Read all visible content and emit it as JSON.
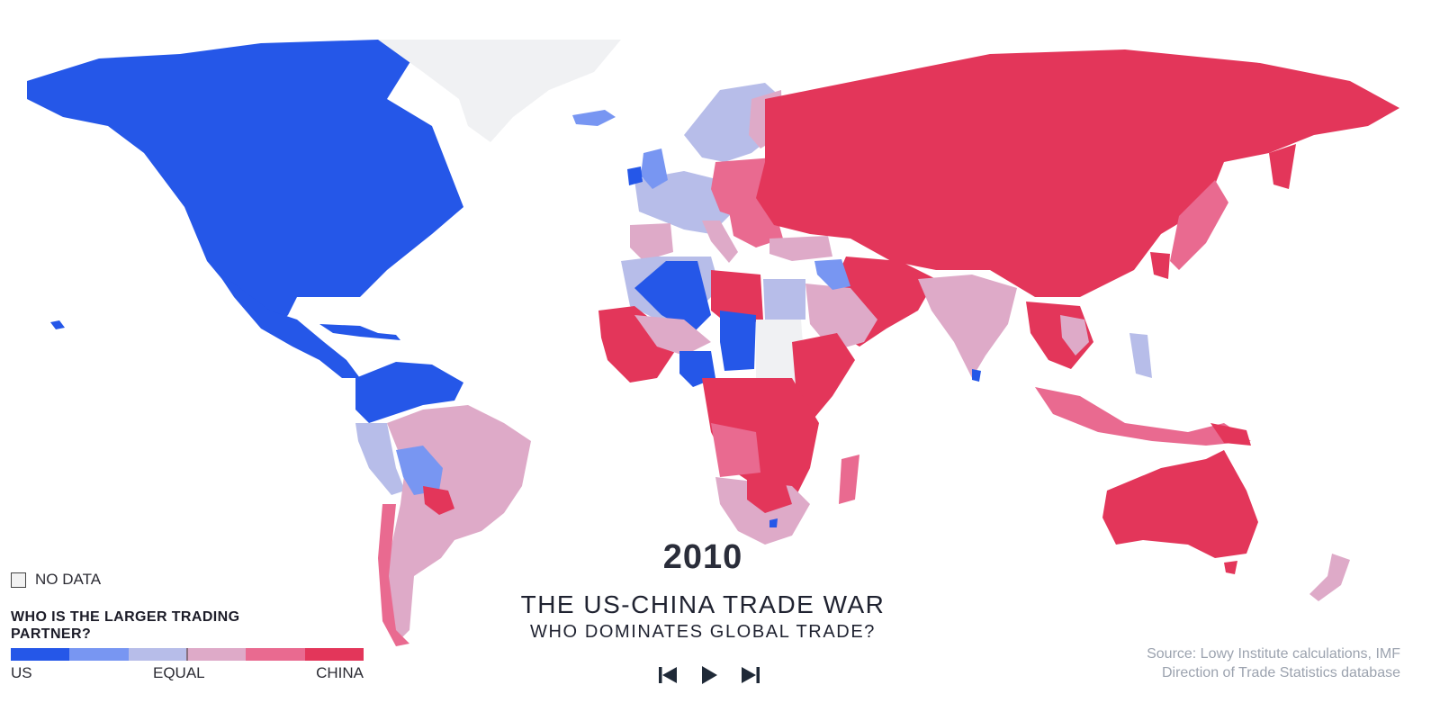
{
  "year": "2010",
  "title": "THE US-CHINA TRADE WAR",
  "subtitle": "WHO DOMINATES GLOBAL TRADE?",
  "legend": {
    "no_data_label": "NO DATA",
    "title": "WHO IS THE LARGER TRADING PARTNER?",
    "scale_colors": [
      "#2557e8",
      "#7896f2",
      "#b7bde9",
      "#deaac8",
      "#e96a90",
      "#e3365a"
    ],
    "labels": {
      "left": "US",
      "middle": "EQUAL",
      "right": "CHINA"
    }
  },
  "colors": {
    "us_strong": "#2557e8",
    "us_mid": "#7896f2",
    "us_light": "#b7bde9",
    "china_light": "#deaac8",
    "china_mid": "#e96a90",
    "china_strong": "#e3365a",
    "no_data": "#f0f1f3"
  },
  "controls": {
    "previous": "skip-back-icon",
    "play": "play-icon",
    "next": "skip-forward-icon"
  },
  "source": {
    "line1": "Source: Lowy Institute calculations, IMF",
    "line2": "Direction of Trade Statistics database"
  }
}
